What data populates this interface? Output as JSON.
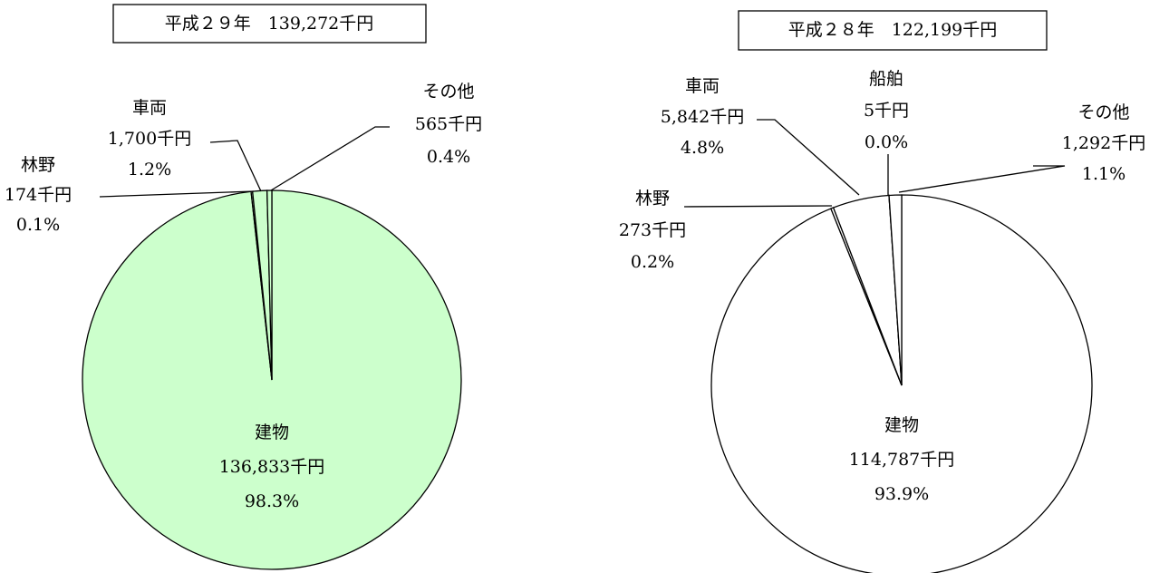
{
  "chart_data": [
    {
      "type": "pie",
      "title": "平成２９年　139,272千円",
      "color": "#ccffcc",
      "categories": [
        "建物",
        "林野",
        "車両",
        "その他"
      ],
      "values": [
        136833,
        174,
        1700,
        565
      ],
      "value_labels": [
        "136,833千円",
        "174千円",
        "1,700千円",
        "565千円"
      ],
      "percent_labels": [
        "98.3%",
        "0.1%",
        "1.2%",
        "0.4%"
      ]
    },
    {
      "type": "pie",
      "title": "平成２８年　122,199千円",
      "color": "#ffffff",
      "categories": [
        "建物",
        "林野",
        "車両",
        "船舶",
        "その他"
      ],
      "values": [
        114787,
        273,
        5842,
        5,
        1292
      ],
      "value_labels": [
        "114,787千円",
        "273千円",
        "5,842千円",
        "5千円",
        "1,292千円"
      ],
      "percent_labels": [
        "93.9%",
        "0.2%",
        "4.8%",
        "0.0%",
        "1.1%"
      ]
    }
  ]
}
